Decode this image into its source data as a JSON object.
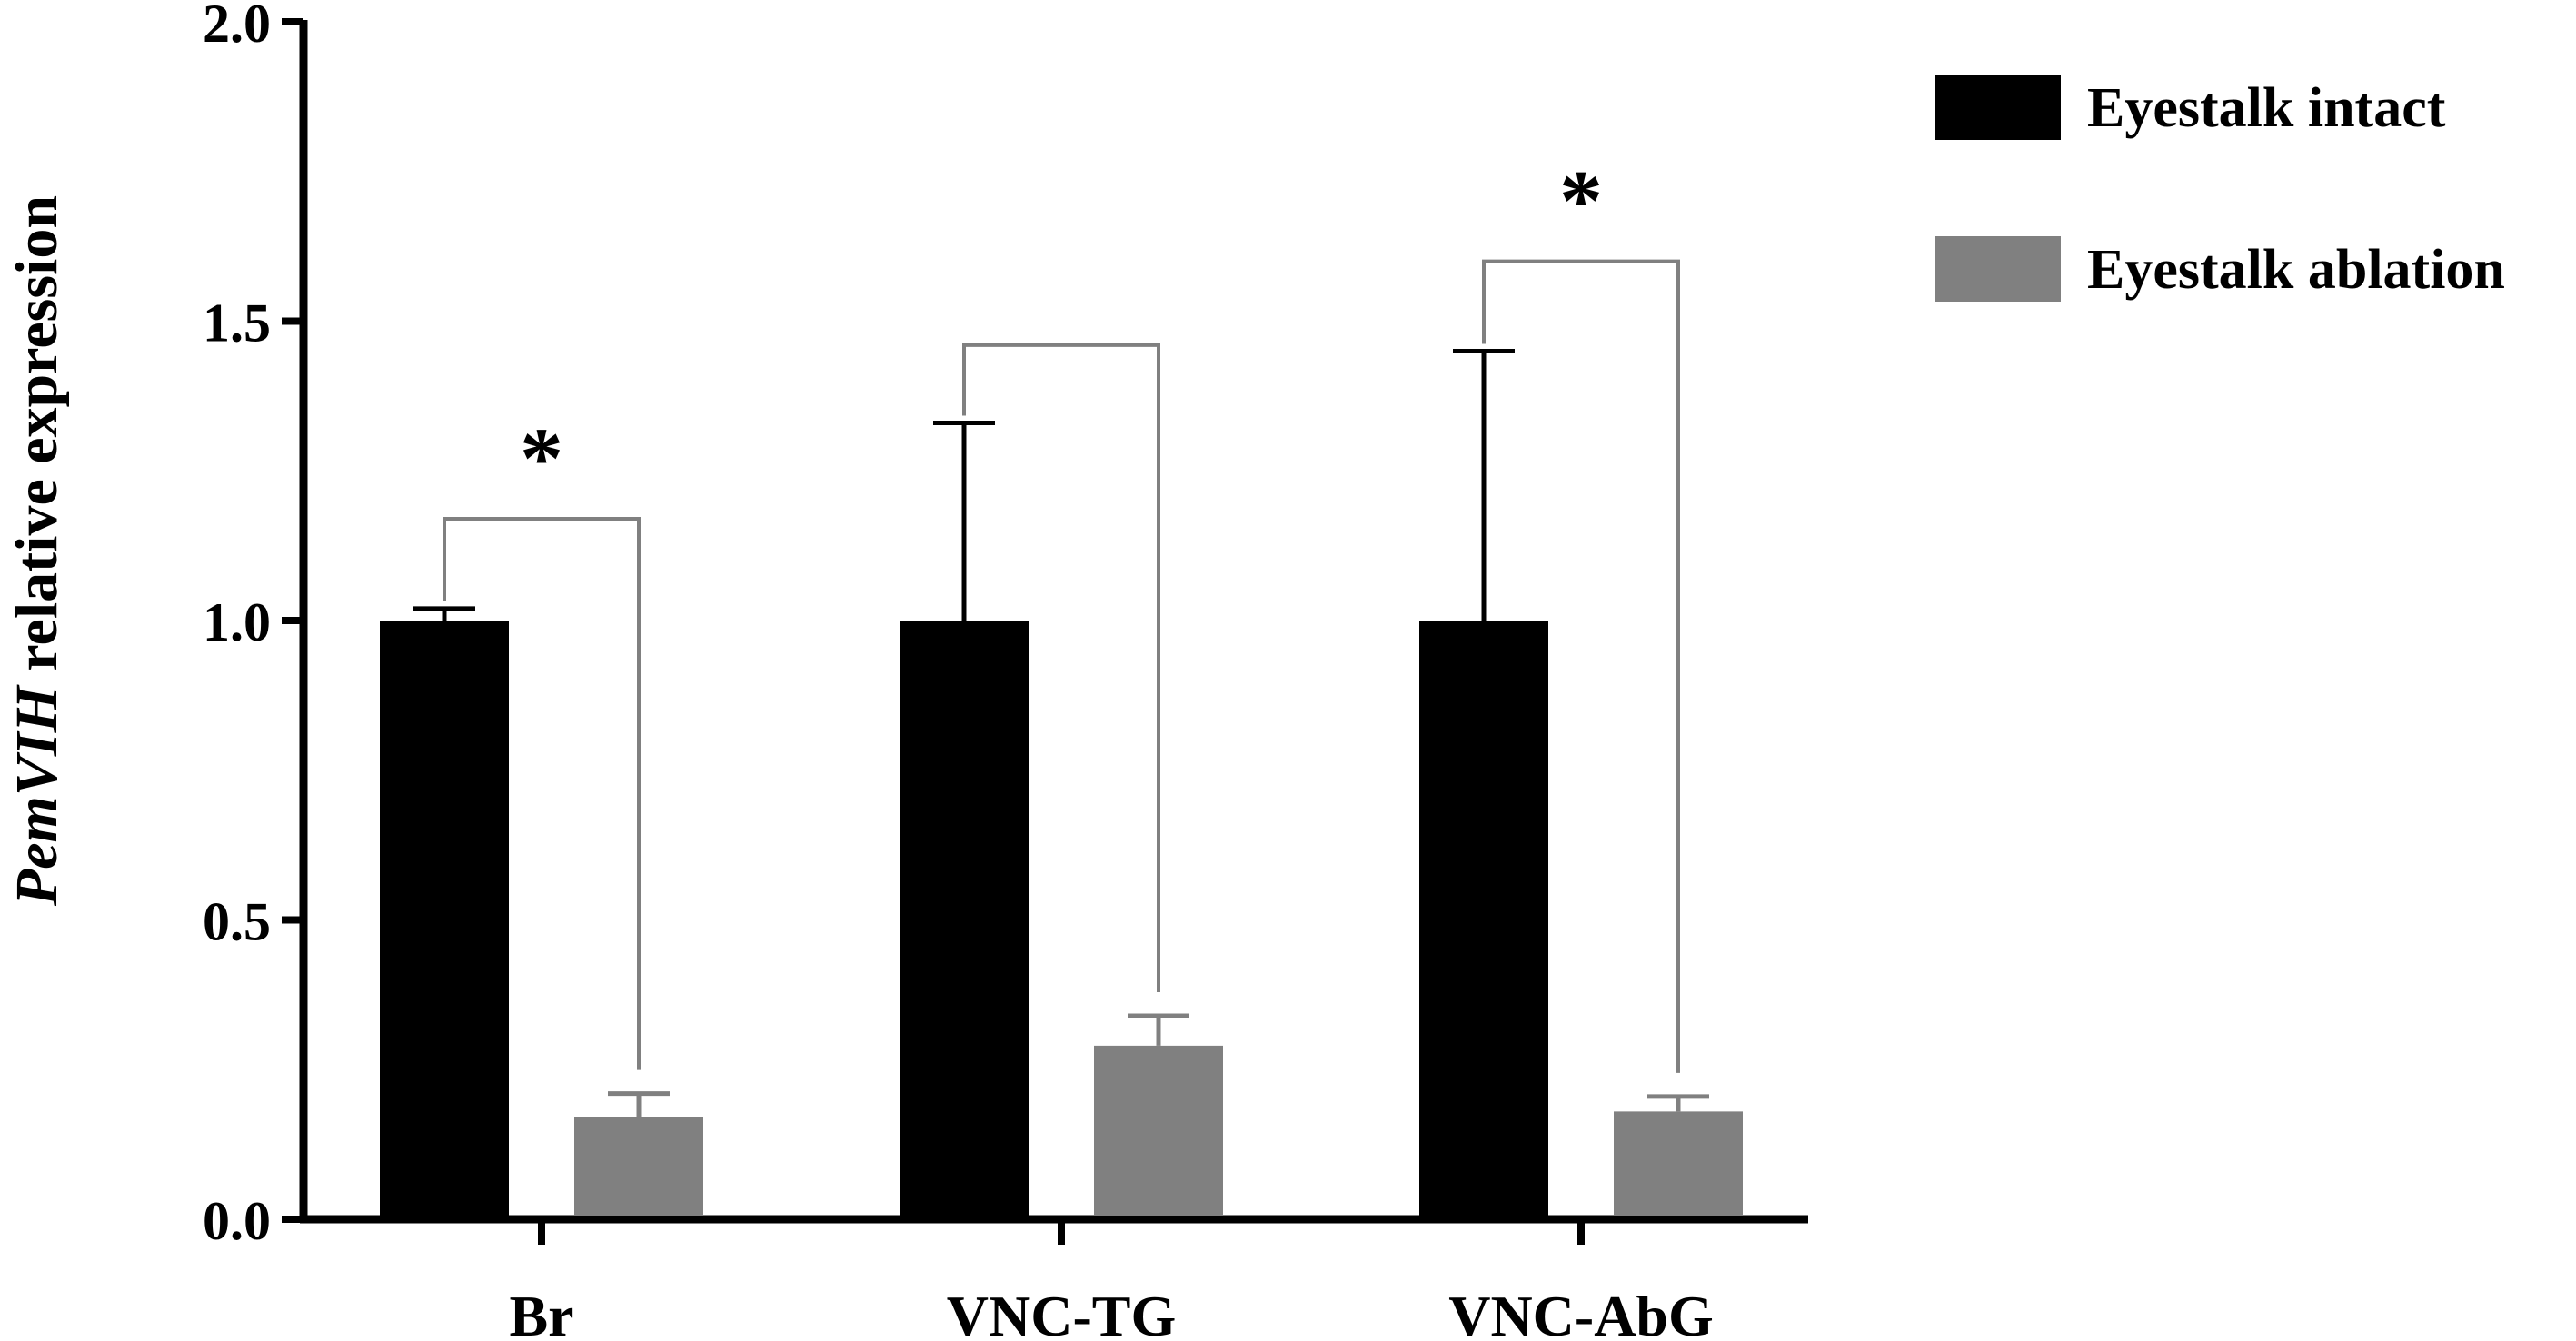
{
  "chart_data": {
    "type": "bar",
    "title": "",
    "ylabel_italic": "PemVIH",
    "ylabel_rest": " relative expression",
    "xlabel": "",
    "ylim": [
      0,
      2.0
    ],
    "yticks": [
      "0.0",
      "0.5",
      "1.0",
      "1.5",
      "2.0"
    ],
    "ytick_values": [
      0,
      0.5,
      1.0,
      1.5,
      2.0
    ],
    "categories": [
      "Br",
      "VNC-TG",
      "VNC-AbG"
    ],
    "series": [
      {
        "name": "Eyestalk intact",
        "color": "#000000",
        "values": [
          1.0,
          1.0,
          1.0
        ],
        "errors": [
          0.02,
          0.33,
          0.45
        ]
      },
      {
        "name": "Eyestalk ablation",
        "color": "#808080",
        "values": [
          0.17,
          0.29,
          0.18
        ],
        "errors": [
          0.04,
          0.05,
          0.025
        ]
      }
    ],
    "significance": [
      {
        "category": "Br",
        "label": "*",
        "bracket_y": 1.17
      },
      {
        "category": "VNC-TG",
        "label": "",
        "bracket_y": 1.46
      },
      {
        "category": "VNC-AbG",
        "label": "*",
        "bracket_y": 1.6
      }
    ],
    "legend": "right",
    "grid": false
  }
}
